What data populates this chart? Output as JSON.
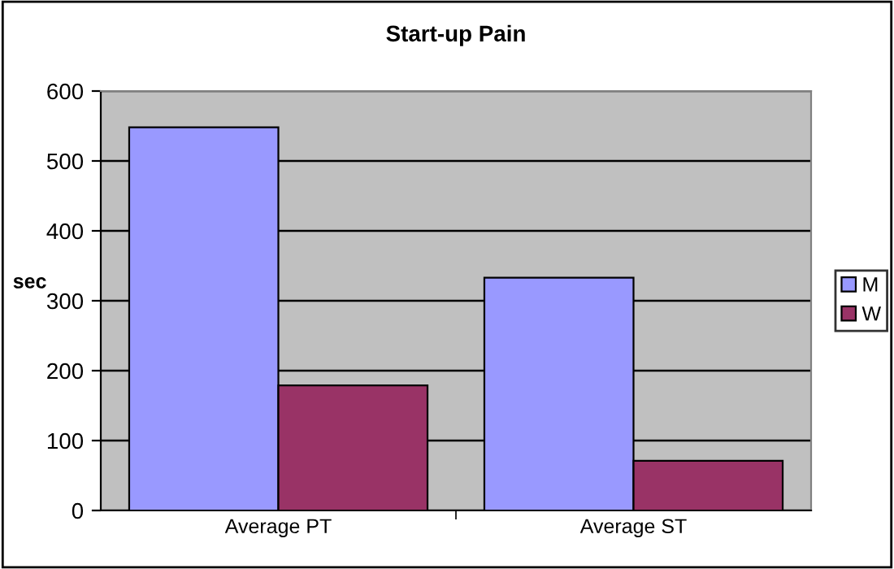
{
  "chart_data": {
    "type": "bar",
    "title": "Start-up Pain",
    "ylabel": "sec",
    "categories": [
      "Average PT",
      "Average ST"
    ],
    "series": [
      {
        "name": "M",
        "color": "#9999ff",
        "values": [
          548,
          333
        ]
      },
      {
        "name": "W",
        "color": "#993366",
        "values": [
          179,
          71
        ]
      }
    ],
    "ylim": [
      0,
      600
    ],
    "yticks": [
      0,
      100,
      200,
      300,
      400,
      500,
      600
    ],
    "grid": "y",
    "legend": "right"
  }
}
